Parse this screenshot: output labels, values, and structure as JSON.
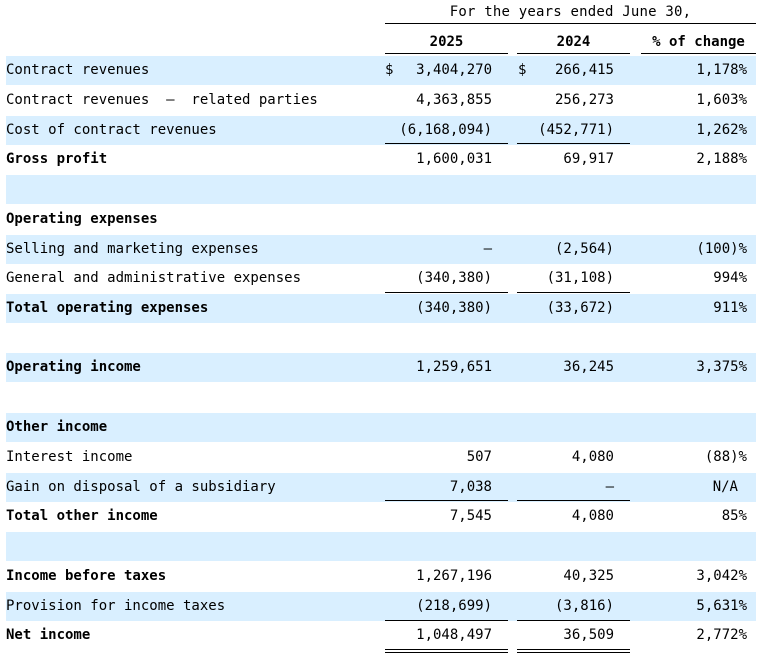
{
  "header": {
    "title": "For the years ended June  30,",
    "col_2025": "2025",
    "col_2024": "2024",
    "col_pct": "% of change"
  },
  "rows": [
    {
      "label": "Contract revenues",
      "cur": "$",
      "v2025": "3,404,270",
      "v2024": "266,415",
      "pct": "1,178%"
    },
    {
      "label": "Contract revenues  –  related parties",
      "v2025": "4,363,855",
      "v2024": "256,273",
      "pct": "1,603%"
    },
    {
      "label": "Cost of contract revenues",
      "v2025": "(6,168,094)",
      "v2024": "(452,771)",
      "pct": "1,262%"
    },
    {
      "label": "Gross profit",
      "v2025": "1,600,031",
      "v2024": "69,917",
      "pct": "2,188%"
    },
    {
      "label": "Operating expenses"
    },
    {
      "label": "Selling and marketing expenses",
      "v2025": "—",
      "v2024": "(2,564)",
      "pct": "(100)%"
    },
    {
      "label": "General and administrative expenses",
      "v2025": "(340,380)",
      "v2024": "(31,108)",
      "pct": "994%"
    },
    {
      "label": "Total operating expenses",
      "v2025": "(340,380)",
      "v2024": "(33,672)",
      "pct": "911%"
    },
    {
      "label": "Operating income",
      "v2025": "1,259,651",
      "v2024": "36,245",
      "pct": "3,375%"
    },
    {
      "label": "Other income"
    },
    {
      "label": "Interest income",
      "v2025": "507",
      "v2024": "4,080",
      "pct": "(88)%"
    },
    {
      "label": "Gain on disposal of a subsidiary",
      "v2025": "7,038",
      "v2024": "—",
      "pct": "N/A"
    },
    {
      "label": "Total other income",
      "v2025": "7,545",
      "v2024": "4,080",
      "pct": "85%"
    },
    {
      "label": "Income before taxes",
      "v2025": "1,267,196",
      "v2024": "40,325",
      "pct": "3,042%"
    },
    {
      "label": "Provision for income taxes",
      "v2025": "(218,699)",
      "v2024": "(3,816)",
      "pct": "5,631%"
    },
    {
      "label": "Net income",
      "v2025": "1,048,497",
      "v2024": "36,509",
      "pct": "2,772%"
    }
  ]
}
